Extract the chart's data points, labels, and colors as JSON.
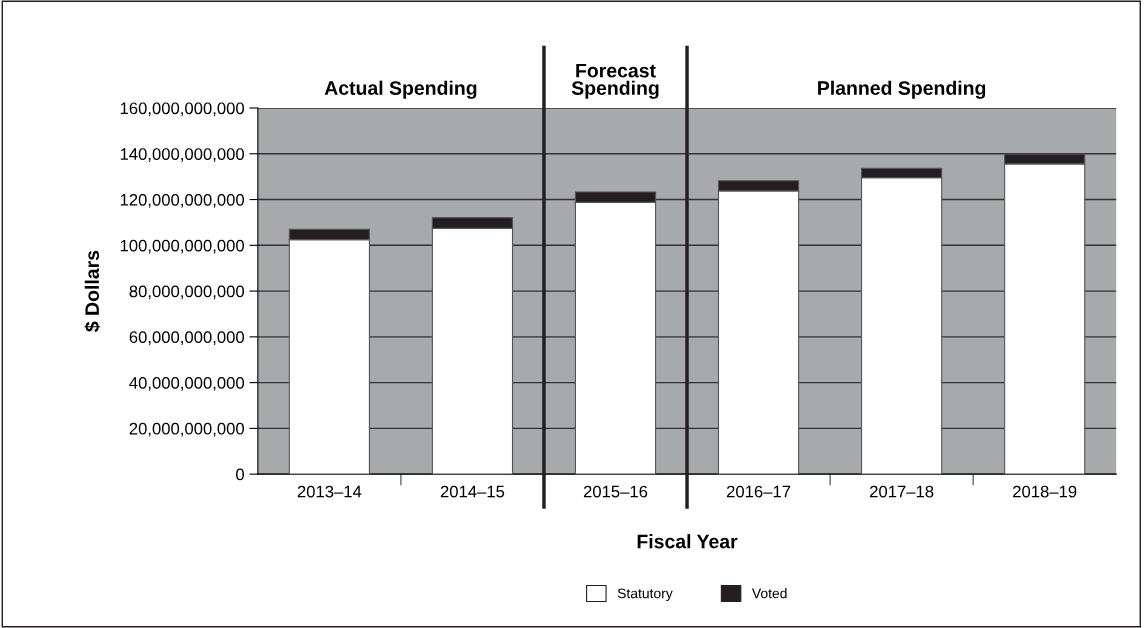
{
  "chart_data": {
    "type": "bar",
    "stacked": true,
    "xlabel": "Fiscal Year",
    "ylabel": "$ Dollars",
    "categories": [
      "2013–14",
      "2014–15",
      "2015–16",
      "2016–17",
      "2017–18",
      "2018–19"
    ],
    "series": [
      {
        "name": "Statutory",
        "color": "#ffffff",
        "values": [
          102500000000,
          107400000000,
          118800000000,
          123800000000,
          129500000000,
          135600000000
        ]
      },
      {
        "name": "Voted",
        "color": "#231f20",
        "values": [
          4500000000,
          4700000000,
          4500000000,
          4400000000,
          4100000000,
          4200000000
        ]
      }
    ],
    "ylim": [
      0,
      160000000000
    ],
    "yticks": [
      {
        "value": 0,
        "label": "0"
      },
      {
        "value": 20000000000,
        "label": "20,000,000,000"
      },
      {
        "value": 40000000000,
        "label": "40,000,000,000"
      },
      {
        "value": 60000000000,
        "label": "60,000,000,000"
      },
      {
        "value": 80000000000,
        "label": "80,000,000,000"
      },
      {
        "value": 100000000000,
        "label": "100,000,000,000"
      },
      {
        "value": 120000000000,
        "label": "120,000,000,000"
      },
      {
        "value": 140000000000,
        "label": "140,000,000,000"
      },
      {
        "value": 160000000000,
        "label": "160,000,000,000"
      }
    ],
    "annotations": [
      "Actual Spending",
      "Forecast\nSpending",
      "Planned Spending"
    ],
    "grid": "y",
    "legend": "bottom"
  }
}
